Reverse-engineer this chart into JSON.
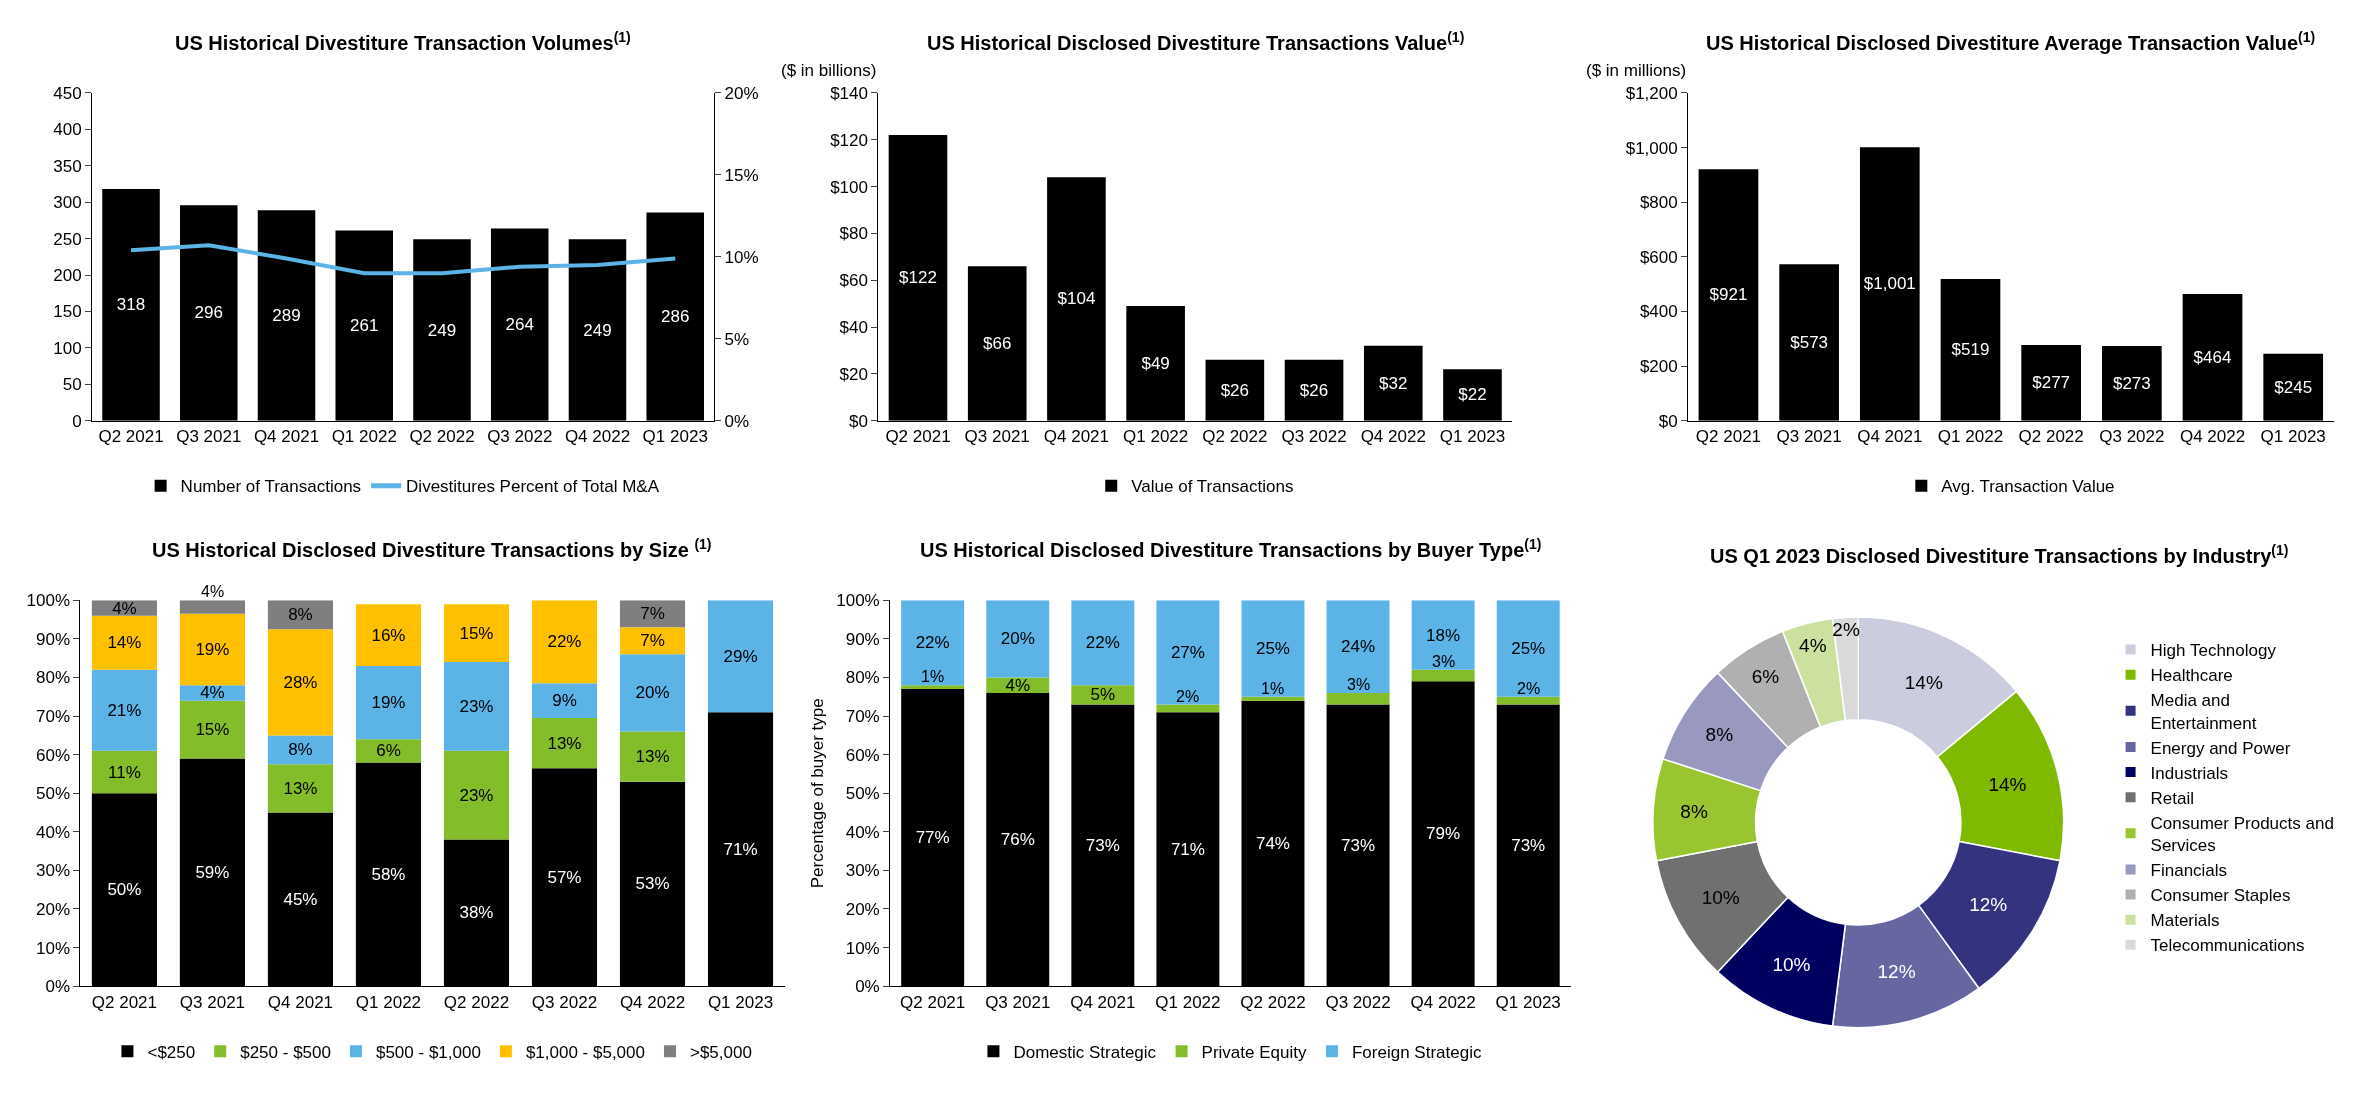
{
  "chart_data": [
    {
      "type": "bar",
      "title": "US Historical Divestiture Transaction Volumes$^{(1)}$",
      "categories": [
        "Q2 2021",
        "Q3 2021",
        "Q4 2021",
        "Q1 2022",
        "Q2 2022",
        "Q3 2022",
        "Q4 2022",
        "Q1 2023"
      ],
      "series": [
        {
          "name": "Number of Transactions",
          "color": "#000000",
          "values": [
            318,
            296,
            289,
            261,
            249,
            264,
            249,
            286
          ],
          "value_labels": [
            "318",
            "296",
            "289",
            "261",
            "249",
            "264",
            "249",
            "286"
          ]
        },
        {
          "name": "Divestitures Percent of Total M&A",
          "type": "line",
          "axis": "y2",
          "color": "#5cb3e6",
          "values": [
            10.4,
            10.7,
            9.9,
            9.0,
            9.0,
            9.4,
            9.5,
            9.9
          ]
        }
      ],
      "ylim": [
        0,
        450
      ],
      "yticks": [
        0,
        50,
        100,
        150,
        200,
        250,
        300,
        350,
        400,
        450
      ],
      "y2lim": [
        0,
        20
      ],
      "y2ticks": [
        {
          "value": 0,
          "label": "0%"
        },
        {
          "value": 5,
          "label": "5%"
        },
        {
          "value": 10,
          "label": "10%"
        },
        {
          "value": 15,
          "label": "15%"
        },
        {
          "value": 20,
          "label": "20%"
        }
      ],
      "grid": false,
      "legend": "bottom",
      "marker": "none"
    },
    {
      "type": "bar",
      "title": "US Historical Disclosed Divestiture Transactions Value$^{(1)}$",
      "ylabel": "($ in billions)",
      "categories": [
        "Q2 2021",
        "Q3 2021",
        "Q4 2021",
        "Q1 2022",
        "Q2 2022",
        "Q3 2022",
        "Q4 2022",
        "Q1 2023"
      ],
      "series": [
        {
          "name": "Value of Transactions",
          "color": "#000000",
          "values": [
            122,
            66,
            104,
            49,
            26,
            26,
            32,
            22
          ],
          "value_labels": [
            "$122",
            "$66",
            "$104",
            "$49",
            "$26",
            "$26",
            "$32",
            "$22"
          ]
        }
      ],
      "ylim": [
        0,
        140
      ],
      "yticks": [
        {
          "value": 0,
          "label": "$0"
        },
        {
          "value": 20,
          "label": "$20"
        },
        {
          "value": 40,
          "label": "$40"
        },
        {
          "value": 60,
          "label": "$60"
        },
        {
          "value": 80,
          "label": "$80"
        },
        {
          "value": 100,
          "label": "$100"
        },
        {
          "value": 120,
          "label": "$120"
        },
        {
          "value": 140,
          "label": "$140"
        }
      ],
      "grid": false,
      "legend": "bottom"
    },
    {
      "type": "bar",
      "title": "US Historical Disclosed Divestiture Average Transaction Value$^{(1)}$",
      "ylabel": "($ in millions)",
      "categories": [
        "Q2 2021",
        "Q3 2021",
        "Q4 2021",
        "Q1 2022",
        "Q2 2022",
        "Q3 2022",
        "Q4 2022",
        "Q1 2023"
      ],
      "series": [
        {
          "name": "Avg. Transaction Value",
          "color": "#000000",
          "values": [
            921,
            573,
            1001,
            519,
            277,
            273,
            464,
            245
          ],
          "value_labels": [
            "$921",
            "$573",
            "$1,001",
            "$519",
            "$277",
            "$273",
            "$464",
            "$245"
          ]
        }
      ],
      "ylim": [
        0,
        1200
      ],
      "yticks": [
        {
          "value": 0,
          "label": "$0"
        },
        {
          "value": 200,
          "label": "$200"
        },
        {
          "value": 400,
          "label": "$400"
        },
        {
          "value": 600,
          "label": "$600"
        },
        {
          "value": 800,
          "label": "$800"
        },
        {
          "value": 1000,
          "label": "$1,000"
        },
        {
          "value": 1200,
          "label": "$1,200"
        }
      ],
      "grid": false,
      "legend": "bottom"
    },
    {
      "type": "bar",
      "stacked": true,
      "title": "US Historical Disclosed Divestiture Transactions by Size $^{(1)}$",
      "categories": [
        "Q2 2021",
        "Q3 2021",
        "Q4 2021",
        "Q1 2022",
        "Q2 2022",
        "Q3 2022",
        "Q4 2022",
        "Q1 2023"
      ],
      "series": [
        {
          "name": "<$250",
          "color": "#000000",
          "values": [
            50,
            59,
            45,
            58,
            38,
            56.5,
            53,
            71
          ],
          "value_labels": [
            "50%",
            "59%",
            "45%",
            "58%",
            "38%",
            "57%",
            "53%",
            "71%"
          ]
        },
        {
          "name": "$250 - $500",
          "color": "#84bd2a",
          "values": [
            11,
            15,
            12.5,
            6,
            23,
            13,
            13,
            null
          ],
          "value_labels": [
            "11%",
            "15%",
            "13%",
            "6%",
            "23%",
            "13%",
            "13%",
            null
          ]
        },
        {
          "name": "$500 - $1,000",
          "color": "#5cb3e6",
          "values": [
            21,
            4,
            7.5,
            19,
            23,
            9,
            20,
            29
          ],
          "value_labels": [
            "21%",
            "4%",
            "8%",
            "19%",
            "23%",
            "9%",
            "20%",
            "29%"
          ]
        },
        {
          "name": "$1,000 - $5,000",
          "color": "#ffc000",
          "values": [
            14,
            18.5,
            27.5,
            16,
            15,
            21.5,
            7,
            null
          ],
          "value_labels": [
            "14%",
            "19%",
            "28%",
            "16%",
            "15%",
            "22%",
            "7%",
            null
          ]
        },
        {
          "name": ">$5,000",
          "color": "#7f7f7f",
          "values": [
            4,
            3.5,
            7.5,
            null,
            null,
            null,
            7,
            null
          ],
          "value_labels": [
            "4%",
            "4%",
            "8%",
            null,
            null,
            null,
            "7%",
            null
          ]
        }
      ],
      "ylim": [
        0,
        100
      ],
      "yticks": [
        {
          "value": 0,
          "label": "0%"
        },
        {
          "value": 10,
          "label": "10%"
        },
        {
          "value": 20,
          "label": "20%"
        },
        {
          "value": 30,
          "label": "30%"
        },
        {
          "value": 40,
          "label": "40%"
        },
        {
          "value": 50,
          "label": "50%"
        },
        {
          "value": 60,
          "label": "60%"
        },
        {
          "value": 70,
          "label": "70%"
        },
        {
          "value": 80,
          "label": "80%"
        },
        {
          "value": 90,
          "label": "90%"
        },
        {
          "value": 100,
          "label": "100%"
        }
      ],
      "grid": false,
      "legend": "bottom"
    },
    {
      "type": "bar",
      "stacked": true,
      "title": "US Historical Disclosed Divestiture Transactions by Buyer Type$^{(1)}$",
      "ylabel": "Percentage of buyer type",
      "categories": [
        "Q2 2021",
        "Q3 2021",
        "Q4 2021",
        "Q1 2022",
        "Q2 2022",
        "Q3 2022",
        "Q4 2022",
        "Q1 2023"
      ],
      "series": [
        {
          "name": "Domestic Strategic",
          "color": "#000000",
          "values": [
            77,
            76,
            73,
            71,
            74,
            73,
            79,
            73
          ],
          "value_labels": [
            "77%",
            "76%",
            "73%",
            "71%",
            "74%",
            "73%",
            "79%",
            "73%"
          ]
        },
        {
          "name": "Private Equity",
          "color": "#84bd2a",
          "values": [
            1,
            4,
            5,
            2,
            1,
            3,
            3,
            2
          ],
          "value_labels": [
            "1%",
            "4%",
            "5%",
            "2%",
            "1%",
            "3%",
            "3%",
            "2%"
          ]
        },
        {
          "name": "Foreign Strategic",
          "color": "#5cb3e6",
          "values": [
            22,
            20,
            22,
            27,
            25,
            24,
            18,
            25
          ],
          "value_labels": [
            "22%",
            "20%",
            "22%",
            "27%",
            "25%",
            "24%",
            "18%",
            "25%"
          ]
        }
      ],
      "ylim": [
        0,
        100
      ],
      "yticks": [
        {
          "value": 0,
          "label": "0%"
        },
        {
          "value": 10,
          "label": "10%"
        },
        {
          "value": 20,
          "label": "20%"
        },
        {
          "value": 30,
          "label": "30%"
        },
        {
          "value": 40,
          "label": "40%"
        },
        {
          "value": 50,
          "label": "50%"
        },
        {
          "value": 60,
          "label": "60%"
        },
        {
          "value": 70,
          "label": "70%"
        },
        {
          "value": 80,
          "label": "80%"
        },
        {
          "value": 90,
          "label": "90%"
        },
        {
          "value": 100,
          "label": "100%"
        }
      ],
      "grid": false,
      "legend": "bottom"
    },
    {
      "type": "donut",
      "title": "US Q1 2023 Disclosed Divestiture Transactions by Industry$^{(1)}$",
      "categories": [
        "High Technology",
        "Healthcare",
        "Media and Entertainment",
        "Energy and Power",
        "Industrials",
        "Retail",
        "Consumer Products and Services",
        "Financials",
        "Consumer Staples",
        "Materials",
        "Telecommunications"
      ],
      "values": [
        14,
        14,
        12,
        12,
        10,
        10,
        8,
        8,
        6,
        4,
        2
      ],
      "value_labels": [
        "14%",
        "14%",
        "12%",
        "12%",
        "10%",
        "10%",
        "8%",
        "8%",
        "6%",
        "4%",
        "2%"
      ],
      "colors": [
        "#ccccdf",
        "#7fba00",
        "#333380",
        "#6666a0",
        "#000060",
        "#707070",
        "#99c530",
        "#9999c0",
        "#b0b0b0",
        "#cce0a0",
        "#d9d9d9"
      ],
      "legend": "right"
    }
  ]
}
